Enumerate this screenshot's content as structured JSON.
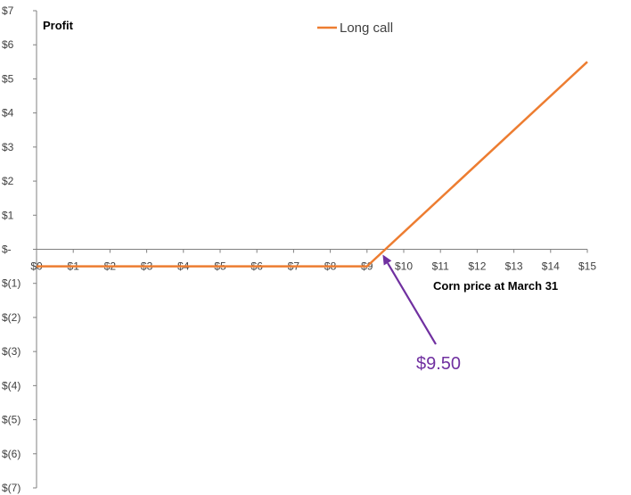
{
  "chart_data": {
    "type": "line",
    "ylabel": "Profit",
    "xlabel": "Corn price at March 31",
    "xlim": [
      0,
      15
    ],
    "ylim": [
      -7,
      7
    ],
    "x_ticks": [
      "$0",
      "$1",
      "$2",
      "$3",
      "$4",
      "$5",
      "$6",
      "$7",
      "$8",
      "$9",
      "$10",
      "$11",
      "$12",
      "$13",
      "$14",
      "$15"
    ],
    "y_ticks": [
      "$7",
      "$6",
      "$5",
      "$4",
      "$3",
      "$2",
      "$1",
      "$-",
      "$(1)",
      "$(2)",
      "$(3)",
      "$(4)",
      "$(5)",
      "$(6)",
      "$(7)"
    ],
    "grid": false,
    "legend_position": "top",
    "series": [
      {
        "name": "Long call",
        "color": "#ED7D31",
        "x": [
          0,
          9,
          15
        ],
        "y": [
          -0.5,
          -0.5,
          5.5
        ]
      }
    ],
    "annotations": [
      {
        "text": "$9.50",
        "x": 9.5,
        "y": 0,
        "color": "#7030A0"
      }
    ]
  }
}
